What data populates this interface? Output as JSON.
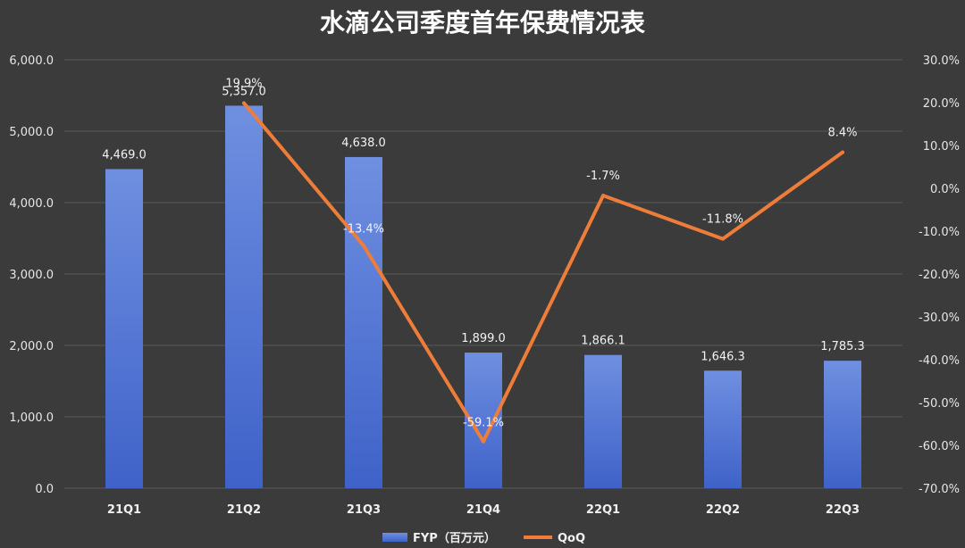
{
  "chart_data": {
    "type": "bar",
    "title": "水滴公司季度首年保费情况表",
    "categories": [
      "21Q1",
      "21Q2",
      "21Q3",
      "21Q4",
      "22Q1",
      "22Q2",
      "22Q3"
    ],
    "series": [
      {
        "name": "FYP（百万元）",
        "type": "bar",
        "axis": "left",
        "values": [
          4469.0,
          5357.0,
          4638.0,
          1899.0,
          1866.1,
          1646.3,
          1785.3
        ],
        "labels": [
          "4,469.0",
          "5,357.0",
          "4,638.0",
          "1,899.0",
          "1,866.1",
          "1,646.3",
          "1,785.3"
        ]
      },
      {
        "name": "QoQ",
        "type": "line",
        "axis": "right",
        "values": [
          null,
          19.9,
          -13.4,
          -59.1,
          -1.7,
          -11.8,
          8.4
        ],
        "labels": [
          "",
          "19.9%",
          "-13.4%",
          "-59.1%",
          "-1.7%",
          "-11.8%",
          "8.4%"
        ]
      }
    ],
    "y_left": {
      "range": [
        0,
        6000
      ],
      "ticks": [
        "0.0",
        "1,000.0",
        "2,000.0",
        "3,000.0",
        "4,000.0",
        "5,000.0",
        "6,000.0"
      ]
    },
    "y_right": {
      "range": [
        -70,
        30
      ],
      "ticks": [
        "-70.0%",
        "-60.0%",
        "-50.0%",
        "-40.0%",
        "-30.0%",
        "-20.0%",
        "-10.0%",
        "0.0%",
        "10.0%",
        "20.0%",
        "30.0%"
      ]
    },
    "grid": true,
    "legend_position": "bottom",
    "colors": {
      "background": "#3b3b3b",
      "bar": "#4a6fd6",
      "bar_light": "#6f8fe0",
      "line": "#ee7d3a",
      "grid": "#595959"
    }
  }
}
